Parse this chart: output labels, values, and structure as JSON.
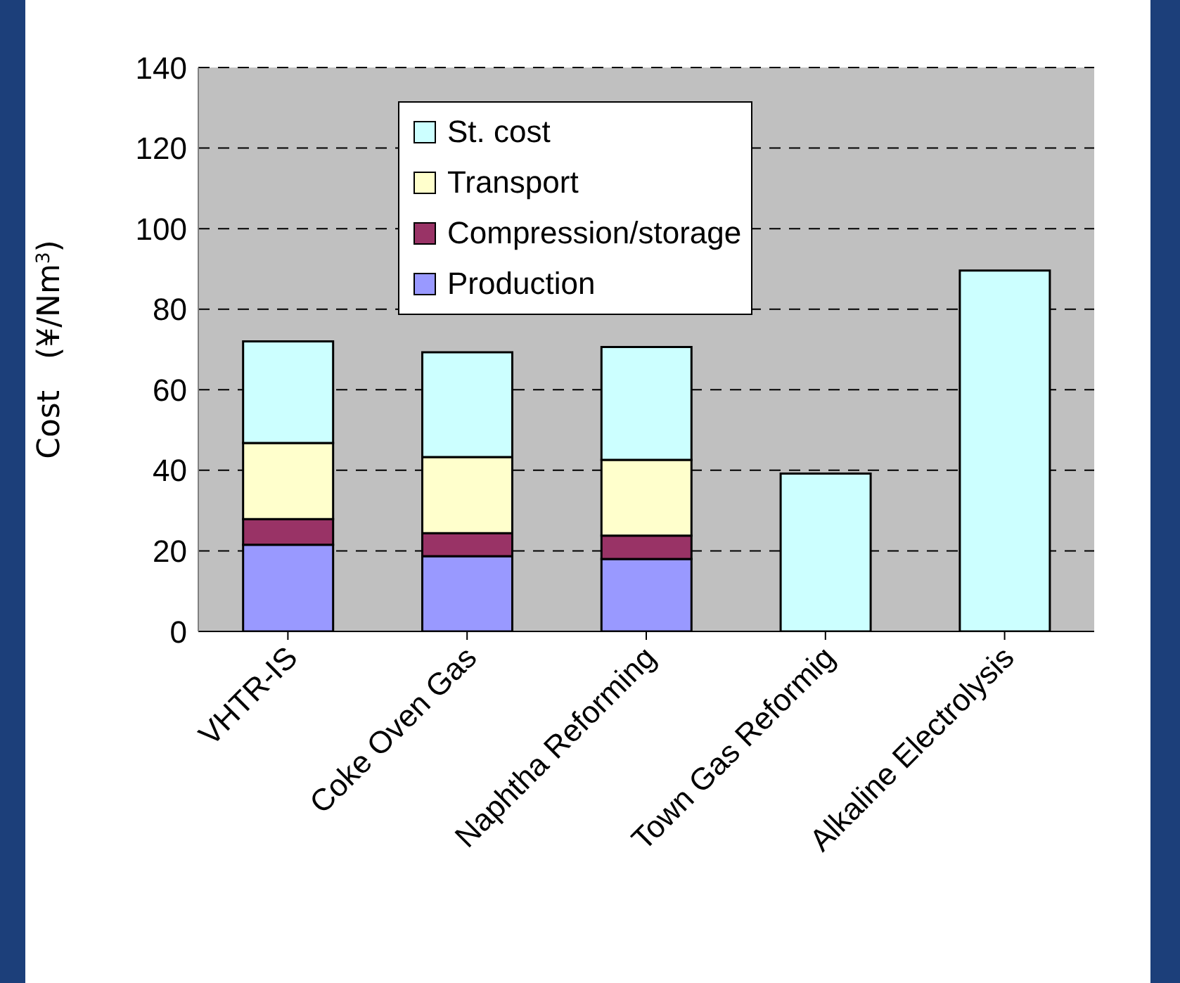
{
  "chart_data": {
    "type": "bar",
    "stacked": true,
    "categories": [
      "VHTR-IS",
      "Coke Oven Gas",
      "Naphtha Reforming",
      "Town Gas Reformig",
      "Alkaline Electrolysis"
    ],
    "series": [
      {
        "name": "Production",
        "color": "#9999ff",
        "values": [
          21.5,
          18.7,
          18.0,
          null,
          null
        ]
      },
      {
        "name": "Compression/storage",
        "color": "#993366",
        "values": [
          6.4,
          5.7,
          5.8,
          null,
          null
        ]
      },
      {
        "name": "Transport",
        "color": "#ffffcc",
        "values": [
          18.9,
          18.9,
          18.8,
          null,
          null
        ]
      },
      {
        "name": "St. cost",
        "color": "#ccffff",
        "values": [
          25.2,
          26.0,
          28.0,
          39.2,
          89.6
        ]
      }
    ],
    "ylabel": "Cost　(¥/Nm$^{3}$)",
    "ylim": [
      0,
      140
    ],
    "yticks": [
      0,
      20,
      40,
      60,
      80,
      100,
      120,
      140
    ],
    "grid": "y",
    "legend": "top"
  }
}
